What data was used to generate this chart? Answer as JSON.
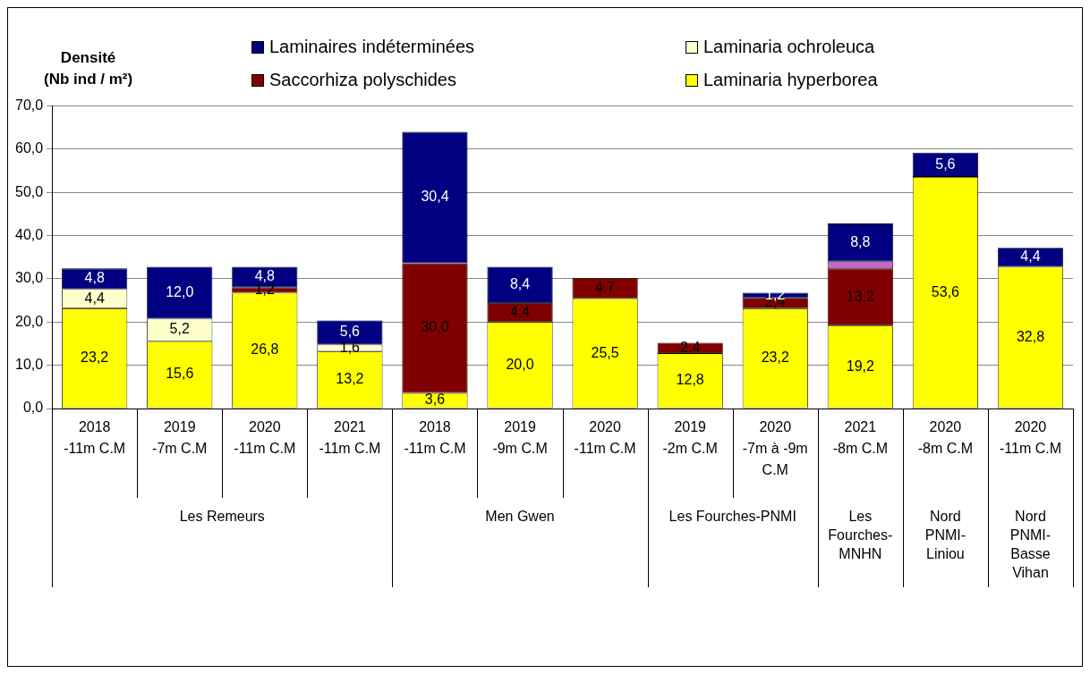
{
  "chart_data": {
    "type": "bar",
    "stacked": true,
    "ylabel": "Densité\n(Nb ind / m²)",
    "categories": [
      "2018\n-11m C.M",
      "2019\n-7m C.M",
      "2020\n-11m C.M",
      "2021\n-11m C.M",
      "2018\n-11m C.M",
      "2019\n-9m C.M",
      "2020\n-11m C.M",
      "2019\n-2m C.M",
      "2020\n-7m à -9m\nC.M",
      "2021\n-8m C.M",
      "2020\n-8m C.M",
      "2020\n-11m C.M"
    ],
    "annotations": [
      "Les Remeurs",
      "Men Gwen",
      "Les Fourches-PNMI",
      "Les\nFourches-\nMNHN",
      "Nord\nPNMI-\nLiniou",
      "Nord\nPNMI-\nBasse\nVihan"
    ],
    "series": [
      {
        "name": "Laminaria hyperborea",
        "color": "#ffff00",
        "values": [
          23.2,
          15.6,
          26.8,
          13.2,
          3.6,
          20.0,
          25.5,
          12.8,
          23.2,
          19.2,
          53.6,
          32.8
        ],
        "value_labels": [
          "23,2",
          "15,6",
          "26,8",
          "13,2",
          "3,6",
          "20,0",
          "25,5",
          "12,8",
          "23,2",
          "19,2",
          "53,6",
          "32,8"
        ]
      },
      {
        "name": "Saccorhiza polyschides",
        "color": "#800000",
        "values": [
          null,
          null,
          1.2,
          null,
          30.0,
          4.4,
          4.7,
          2.4,
          2.4,
          13.2,
          null,
          null
        ],
        "value_labels": [
          null,
          null,
          "1,2",
          null,
          "30,0",
          "4,4",
          "4,7",
          "2,4",
          "2,4",
          "13,2",
          null,
          null
        ]
      },
      {
        "name": "Laminaria ochroleuca",
        "color": "#ffffcc",
        "values": [
          4.4,
          5.2,
          null,
          1.6,
          null,
          null,
          null,
          null,
          null,
          null,
          null,
          null
        ],
        "value_labels": [
          "4,4",
          "5,2",
          null,
          "1,6",
          null,
          null,
          null,
          null,
          null,
          null,
          null,
          null
        ]
      },
      {
        "color": "#cc66cc",
        "values": [
          null,
          null,
          null,
          null,
          null,
          null,
          null,
          null,
          null,
          1.6,
          null,
          null
        ]
      },
      {
        "name": "Laminaires indéterminées",
        "color": "#000080",
        "values": [
          4.8,
          12.0,
          4.8,
          5.6,
          30.4,
          8.4,
          null,
          null,
          1.2,
          8.8,
          5.6,
          4.4
        ],
        "value_labels": [
          "4,8",
          "12,0",
          "4,8",
          "5,6",
          "30,4",
          "8,4",
          null,
          null,
          "1,2",
          "8,8",
          "5,6",
          "4,4"
        ]
      }
    ],
    "ylim": [
      0,
      70
    ],
    "yticks": [
      {
        "value": 0,
        "label": "0,0"
      },
      {
        "value": 10,
        "label": "10,0"
      },
      {
        "value": 20,
        "label": "20,0"
      },
      {
        "value": 30,
        "label": "30,0"
      },
      {
        "value": 40,
        "label": "40,0"
      },
      {
        "value": 50,
        "label": "50,0"
      },
      {
        "value": 60,
        "label": "60,0"
      },
      {
        "value": 70,
        "label": "70,0"
      }
    ],
    "grid": "y",
    "legend": "top"
  }
}
